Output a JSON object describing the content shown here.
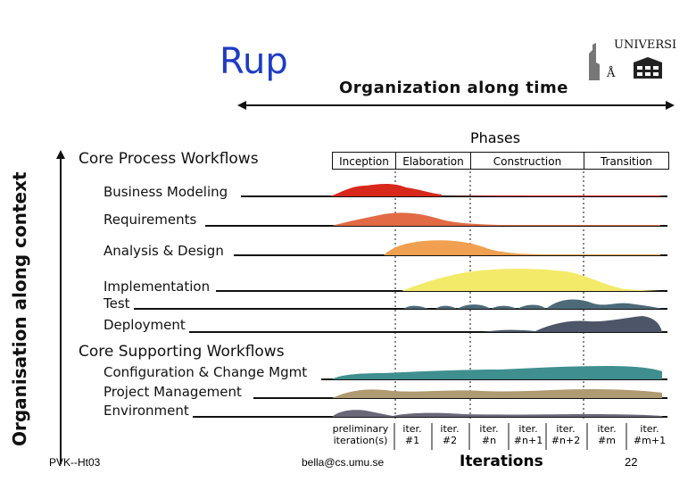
{
  "slide": {
    "title": "Rup",
    "org_time_label": "Organization along time",
    "org_context_label": "Organisation along context",
    "phases_label": "Phases",
    "core_process_heading": "Core Process Workflows",
    "core_supporting_heading": "Core Supporting Workflows",
    "iterations_label": "Iterations",
    "footer_left": "PVK--Ht03",
    "footer_center": "bella@cs.umu.se",
    "page_number": "22",
    "logo_letters": "UNIVERSI",
    "logo_letters_left": "Å"
  },
  "phases": [
    "Inception",
    "Elaboration",
    "Construction",
    "Transition"
  ],
  "workflows": {
    "process": [
      "Business Modeling",
      "Requirements",
      "Analysis & Design",
      "Implementation",
      "Test",
      "Deployment"
    ],
    "supporting": [
      "Configuration & Change Mgmt",
      "Project Management",
      "Environment"
    ]
  },
  "iterations": [
    {
      "line1": "preliminary",
      "line2": "iteration(s)"
    },
    {
      "line1": "iter.",
      "line2": "#1"
    },
    {
      "line1": "iter.",
      "line2": "#2"
    },
    {
      "line1": "iter.",
      "line2": "#n"
    },
    {
      "line1": "iter.",
      "line2": "#n+1"
    },
    {
      "line1": "iter.",
      "line2": "#n+2"
    },
    {
      "line1": "iter.",
      "line2": "#m"
    },
    {
      "line1": "iter.",
      "line2": "#m+1"
    }
  ],
  "colors": {
    "title": "#1f3cc4",
    "business_modeling": "#d8281c",
    "requirements": "#e26a44",
    "analysis_design": "#f0a050",
    "implementation": "#f4ea6a",
    "test": "#4c6a78",
    "deployment": "#4c5668",
    "config_change": "#3f8f8f",
    "project_mgmt": "#b09a72",
    "environment": "#6a6878"
  }
}
